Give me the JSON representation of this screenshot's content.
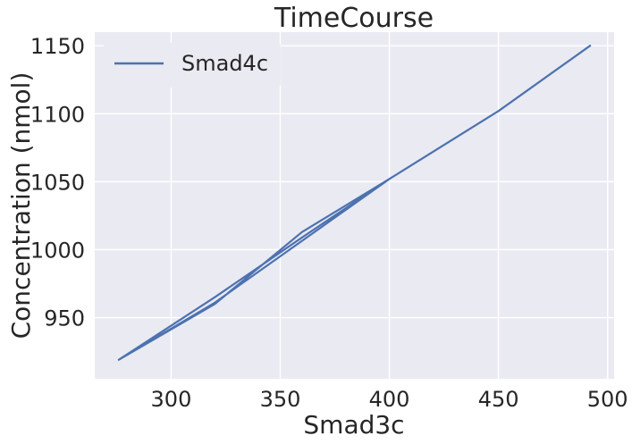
{
  "chart_data": {
    "type": "line",
    "title": "TimeCourse",
    "xlabel": "Smad3c",
    "ylabel": "Concentration (nmol)",
    "xlim": [
      265,
      503
    ],
    "ylim": [
      905,
      1160
    ],
    "xticks": [
      300,
      350,
      400,
      450,
      500
    ],
    "yticks": [
      950,
      1000,
      1050,
      1100,
      1150
    ],
    "grid": true,
    "legend_position": "top-left",
    "colors": {
      "background": "#EAEAF2",
      "grid": "#FFFFFF",
      "series": "#4C72B0"
    },
    "series": [
      {
        "name": "Smad4c",
        "x": [
          276,
          320,
          360,
          400,
          360,
          320,
          276,
          320,
          400,
          450,
          492
        ],
        "y": [
          919,
          960,
          1013,
          1052,
          1009,
          965,
          919,
          961,
          1052,
          1102,
          1150
        ]
      }
    ]
  }
}
